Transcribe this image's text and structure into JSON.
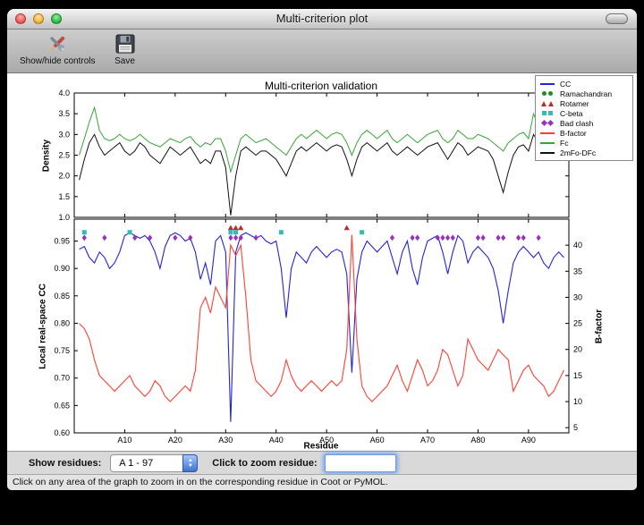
{
  "window": {
    "title": "Multi-criterion plot"
  },
  "toolbar": {
    "show_hide_label": "Show/hide controls",
    "save_label": "Save"
  },
  "figure": {
    "title": "Multi-criterion validation",
    "legend": {
      "items": [
        {
          "label": "CC",
          "marker": "line",
          "color": "#2323dd"
        },
        {
          "label": "Ramachandran",
          "marker": "circle",
          "color": "#228b22"
        },
        {
          "label": "Rotamer",
          "marker": "triangle",
          "color": "#bb2e2e"
        },
        {
          "label": "C-beta",
          "marker": "square",
          "color": "#33bbb5"
        },
        {
          "label": "Bad clash",
          "marker": "diamond",
          "color": "#9933bb"
        },
        {
          "label": "B-factor",
          "marker": "line",
          "color": "#ff4033"
        },
        {
          "label": "Fc",
          "marker": "line",
          "color": "#35a535"
        },
        {
          "label": "2mFo-DFc",
          "marker": "line",
          "color": "#111111"
        }
      ]
    }
  },
  "controls": {
    "show_residues_label": "Show residues:",
    "range_value": "A 1 - 97",
    "zoom_label": "Click to zoom residue:",
    "zoom_value": ""
  },
  "status_bar": {
    "text": "Click on any area of the graph to zoom in on the corresponding residue in Coot or PyMOL."
  },
  "chart_data": [
    {
      "type": "line",
      "ylabel": "Density",
      "ylim": [
        1.0,
        4.0
      ],
      "yticks": [
        "1.0",
        "1.5",
        "2.0",
        "2.5",
        "3.0",
        "3.5",
        "4.0"
      ],
      "x_is_residue_index": true,
      "series": [
        {
          "name": "Fc",
          "color": "#35a535",
          "values": [
            2.5,
            2.9,
            3.3,
            3.65,
            3.1,
            2.9,
            2.85,
            2.9,
            3.0,
            2.9,
            2.85,
            2.9,
            3.0,
            2.9,
            2.8,
            2.75,
            2.7,
            2.8,
            2.9,
            2.85,
            2.8,
            2.9,
            2.95,
            2.8,
            2.7,
            2.8,
            2.75,
            2.9,
            2.9,
            2.6,
            2.1,
            2.5,
            2.9,
            3.0,
            2.9,
            2.8,
            2.85,
            2.9,
            2.8,
            2.7,
            2.6,
            2.5,
            2.7,
            2.9,
            3.0,
            2.9,
            3.0,
            3.1,
            3.0,
            2.9,
            3.0,
            3.05,
            3.0,
            2.8,
            2.5,
            2.8,
            3.0,
            3.1,
            3.0,
            2.9,
            3.0,
            3.1,
            2.9,
            2.8,
            2.9,
            3.0,
            2.9,
            2.8,
            2.9,
            3.0,
            3.05,
            3.1,
            2.9,
            2.8,
            2.9,
            3.1,
            3.0,
            2.9,
            2.9,
            3.0,
            2.95,
            2.9,
            2.8,
            2.7,
            2.6,
            2.8,
            2.9,
            3.0,
            3.05,
            2.9,
            3.5,
            3.2,
            2.9,
            2.8,
            2.9,
            3.4,
            3.0
          ]
        },
        {
          "name": "2mFo-DFc",
          "color": "#111111",
          "values": [
            1.9,
            2.4,
            2.8,
            3.0,
            2.7,
            2.5,
            2.6,
            2.7,
            2.8,
            2.6,
            2.5,
            2.6,
            2.8,
            2.7,
            2.5,
            2.4,
            2.3,
            2.5,
            2.7,
            2.6,
            2.5,
            2.6,
            2.7,
            2.5,
            2.3,
            2.4,
            2.3,
            2.6,
            2.6,
            2.2,
            1.05,
            2.0,
            2.6,
            2.7,
            2.6,
            2.5,
            2.6,
            2.6,
            2.5,
            2.4,
            2.2,
            2.0,
            2.3,
            2.6,
            2.7,
            2.6,
            2.7,
            2.8,
            2.7,
            2.6,
            2.7,
            2.75,
            2.7,
            2.4,
            2.0,
            2.4,
            2.7,
            2.8,
            2.7,
            2.6,
            2.7,
            2.8,
            2.6,
            2.5,
            2.6,
            2.7,
            2.6,
            2.5,
            2.6,
            2.7,
            2.75,
            2.8,
            2.6,
            2.4,
            2.6,
            2.8,
            2.7,
            2.5,
            2.6,
            2.7,
            2.65,
            2.6,
            2.4,
            2.0,
            1.6,
            2.1,
            2.5,
            2.7,
            2.75,
            2.6,
            3.0,
            2.8,
            2.5,
            2.4,
            2.5,
            2.9,
            2.6
          ]
        }
      ]
    },
    {
      "type": "line+scatter",
      "xlabel": "Residue",
      "xlim": [
        0,
        98
      ],
      "xticks": {
        "positions": [
          10,
          20,
          30,
          40,
          50,
          60,
          70,
          80,
          90
        ],
        "labels": [
          "A10",
          "A20",
          "A30",
          "A40",
          "A50",
          "A60",
          "A70",
          "A80",
          "A90"
        ]
      },
      "left_axis": {
        "label": "Local real-space CC",
        "lim": [
          0.6,
          0.99
        ],
        "ticks": [
          "0.60",
          "0.65",
          "0.70",
          "0.75",
          "0.80",
          "0.85",
          "0.90",
          "0.95"
        ]
      },
      "right_axis": {
        "label": "B-factor",
        "lim": [
          4,
          45
        ],
        "ticks": [
          "5",
          "10",
          "15",
          "20",
          "25",
          "30",
          "35",
          "40"
        ]
      },
      "series": [
        {
          "name": "CC",
          "axis": "left",
          "color": "#2323dd",
          "values": [
            0.935,
            0.94,
            0.92,
            0.91,
            0.93,
            0.92,
            0.9,
            0.91,
            0.93,
            0.96,
            0.965,
            0.96,
            0.955,
            0.96,
            0.95,
            0.93,
            0.9,
            0.94,
            0.96,
            0.965,
            0.96,
            0.95,
            0.955,
            0.93,
            0.88,
            0.91,
            0.87,
            0.95,
            0.96,
            0.93,
            0.62,
            0.93,
            0.96,
            0.965,
            0.96,
            0.955,
            0.96,
            0.95,
            0.945,
            0.95,
            0.9,
            0.81,
            0.9,
            0.93,
            0.92,
            0.91,
            0.93,
            0.94,
            0.93,
            0.92,
            0.93,
            0.935,
            0.93,
            0.89,
            0.71,
            0.88,
            0.93,
            0.95,
            0.94,
            0.93,
            0.94,
            0.95,
            0.92,
            0.89,
            0.93,
            0.95,
            0.9,
            0.87,
            0.92,
            0.95,
            0.955,
            0.96,
            0.93,
            0.89,
            0.93,
            0.96,
            0.95,
            0.91,
            0.93,
            0.94,
            0.93,
            0.92,
            0.9,
            0.86,
            0.8,
            0.86,
            0.91,
            0.93,
            0.94,
            0.93,
            0.92,
            0.93,
            0.91,
            0.9,
            0.92,
            0.93,
            0.92
          ]
        },
        {
          "name": "B-factor",
          "axis": "right",
          "color": "#ff4033",
          "values": [
            25,
            24,
            22,
            18,
            15,
            14,
            13,
            12,
            13,
            14,
            15,
            13,
            12,
            11,
            12,
            14,
            13,
            11,
            10,
            11,
            12,
            13,
            12,
            16,
            28,
            30,
            27,
            32,
            30,
            28,
            40,
            38,
            40,
            30,
            18,
            14,
            13,
            12,
            11,
            12,
            14,
            18,
            15,
            13,
            12,
            13,
            14,
            13,
            12,
            13,
            14,
            13,
            14,
            20,
            42,
            22,
            13,
            11,
            10,
            11,
            12,
            13,
            15,
            17,
            14,
            12,
            15,
            18,
            16,
            13,
            14,
            16,
            20,
            19,
            16,
            13,
            15,
            22,
            20,
            18,
            17,
            16,
            18,
            20,
            19,
            18,
            12,
            14,
            16,
            17,
            15,
            14,
            13,
            11,
            12,
            14,
            16
          ]
        }
      ],
      "markers": [
        {
          "name": "Ramachandran",
          "shape": "circle",
          "color": "#228b22",
          "y": 0.974,
          "residues": []
        },
        {
          "name": "Rotamer",
          "shape": "triangle",
          "color": "#bb2e2e",
          "y": 0.974,
          "residues": [
            31,
            32,
            33,
            54
          ]
        },
        {
          "name": "C-beta",
          "shape": "square",
          "color": "#33bbb5",
          "y": 0.966,
          "residues": [
            2,
            11,
            31,
            32,
            41,
            57
          ]
        },
        {
          "name": "Bad clash",
          "shape": "diamond",
          "color": "#9933bb",
          "y": 0.956,
          "residues": [
            2,
            6,
            12,
            15,
            20,
            23,
            31,
            32,
            33,
            36,
            63,
            67,
            68,
            72,
            73,
            74,
            75,
            80,
            81,
            84,
            85,
            88,
            89,
            92
          ]
        }
      ]
    }
  ]
}
